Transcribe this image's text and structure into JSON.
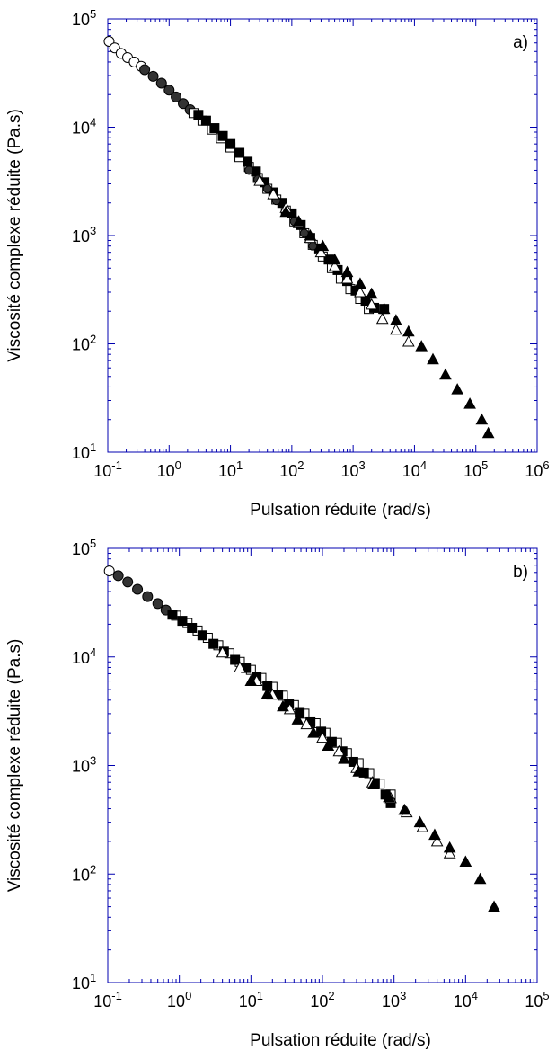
{
  "chart_data": [
    {
      "type": "scatter",
      "panel_label": "a)",
      "xlabel": "Pulsation réduite (rad/s)",
      "ylabel": "Viscosité complexe réduite (Pa.s)",
      "xscale": "log",
      "yscale": "log",
      "xlim": [
        0.1,
        1000000
      ],
      "ylim": [
        10,
        100000
      ],
      "x_ticks": [
        {
          "base": "10",
          "exp": "-1"
        },
        {
          "base": "10",
          "exp": "0"
        },
        {
          "base": "10",
          "exp": "1"
        },
        {
          "base": "10",
          "exp": "2"
        },
        {
          "base": "10",
          "exp": "3"
        },
        {
          "base": "10",
          "exp": "4"
        },
        {
          "base": "10",
          "exp": "5"
        },
        {
          "base": "10",
          "exp": "6"
        }
      ],
      "y_ticks": [
        {
          "base": "10",
          "exp": "1"
        },
        {
          "base": "10",
          "exp": "2"
        },
        {
          "base": "10",
          "exp": "3"
        },
        {
          "base": "10",
          "exp": "4"
        },
        {
          "base": "10",
          "exp": "5"
        }
      ],
      "grid": false,
      "legend": "none",
      "series": [
        {
          "marker": "circle-open",
          "x": [
            0.105,
            0.13,
            0.165,
            0.21,
            0.27,
            0.35
          ],
          "y": [
            62000,
            54000,
            48000,
            44000,
            40000,
            36500
          ]
        },
        {
          "marker": "circle-filled",
          "x": [
            0.4,
            0.55,
            0.75,
            1.0,
            1.3,
            1.7,
            2.2
          ],
          "y": [
            34000,
            29500,
            25500,
            22000,
            19000,
            16500,
            14500
          ]
        },
        {
          "marker": "square-open",
          "x": [
            2.5,
            3.5,
            5,
            7,
            10,
            14,
            20,
            28,
            40,
            56,
            80,
            110,
            160,
            220,
            320,
            450,
            630,
            900,
            1300,
            1800
          ],
          "y": [
            13500,
            11500,
            9500,
            7900,
            6500,
            5300,
            4300,
            3400,
            2700,
            2150,
            1700,
            1350,
            1050,
            820,
            640,
            500,
            400,
            320,
            260,
            210
          ]
        },
        {
          "marker": "square-filled",
          "x": [
            3,
            4,
            5.5,
            7.5,
            10,
            14,
            19,
            26,
            36,
            50,
            70,
            100,
            140,
            200,
            280,
            400,
            560,
            800,
            1100,
            1600,
            2200,
            3200
          ],
          "y": [
            13000,
            11500,
            9800,
            8300,
            7000,
            5800,
            4800,
            3900,
            3100,
            2500,
            2000,
            1600,
            1250,
            950,
            760,
            600,
            480,
            380,
            310,
            250,
            215,
            210
          ]
        },
        {
          "marker": "circle-filled-small",
          "x": [
            20,
            28,
            40,
            56,
            80,
            110,
            160,
            220
          ],
          "y": [
            4000,
            3300,
            2700,
            2100,
            1650,
            1350,
            1050,
            800
          ]
        },
        {
          "marker": "triangle-open",
          "x": [
            30,
            50,
            80,
            130,
            200,
            300,
            500,
            800,
            1300,
            2000,
            3000,
            5000,
            8000
          ],
          "y": [
            3200,
            2400,
            1800,
            1300,
            950,
            700,
            520,
            400,
            300,
            230,
            170,
            135,
            105
          ]
        },
        {
          "marker": "triangle-filled",
          "x": [
            80,
            130,
            200,
            320,
            500,
            800,
            1300,
            2000,
            3200,
            5000,
            8000,
            13000,
            20000,
            32000,
            50000,
            80000,
            125000,
            160000
          ],
          "y": [
            1650,
            1350,
            1000,
            800,
            600,
            460,
            360,
            290,
            210,
            165,
            130,
            95,
            72,
            52,
            38,
            28,
            20,
            15
          ]
        }
      ]
    },
    {
      "type": "scatter",
      "panel_label": "b)",
      "xlabel": "Pulsation réduite (rad/s)",
      "ylabel": "Viscosité complexe réduite (Pa.s)",
      "xscale": "log",
      "yscale": "log",
      "xlim": [
        0.1,
        100000
      ],
      "ylim": [
        10,
        100000
      ],
      "x_ticks": [
        {
          "base": "10",
          "exp": "-1"
        },
        {
          "base": "10",
          "exp": "0"
        },
        {
          "base": "10",
          "exp": "1"
        },
        {
          "base": "10",
          "exp": "2"
        },
        {
          "base": "10",
          "exp": "3"
        },
        {
          "base": "10",
          "exp": "4"
        },
        {
          "base": "10",
          "exp": "5"
        }
      ],
      "y_ticks": [
        {
          "base": "10",
          "exp": "1"
        },
        {
          "base": "10",
          "exp": "2"
        },
        {
          "base": "10",
          "exp": "3"
        },
        {
          "base": "10",
          "exp": "4"
        },
        {
          "base": "10",
          "exp": "5"
        }
      ],
      "grid": false,
      "legend": "none",
      "series": [
        {
          "marker": "circle-open",
          "x": [
            0.105
          ],
          "y": [
            62000
          ]
        },
        {
          "marker": "circle-filled",
          "x": [
            0.14,
            0.19,
            0.26,
            0.36,
            0.5,
            0.65
          ],
          "y": [
            56000,
            49000,
            42000,
            36000,
            31000,
            27000
          ]
        },
        {
          "marker": "square-open",
          "x": [
            0.9,
            1.3,
            1.8,
            2.5,
            3.5,
            5,
            7,
            10,
            14,
            20,
            28,
            40,
            56,
            80,
            110,
            160,
            220,
            320,
            450,
            630,
            900
          ],
          "y": [
            24000,
            20500,
            17500,
            15000,
            12800,
            10800,
            9000,
            7600,
            6400,
            5300,
            4400,
            3600,
            3000,
            2450,
            2000,
            1620,
            1300,
            1050,
            850,
            680,
            540
          ]
        },
        {
          "marker": "square-filled",
          "x": [
            0.8,
            1.1,
            1.5,
            2.1,
            3,
            4.2,
            6,
            8.5,
            12,
            17,
            24,
            34,
            48,
            68,
            96,
            135,
            190,
            270,
            380,
            540,
            760,
            900
          ],
          "y": [
            24500,
            21500,
            18500,
            15800,
            13200,
            11200,
            9400,
            7900,
            6500,
            5400,
            4500,
            3700,
            3050,
            2500,
            2050,
            1650,
            1350,
            1080,
            860,
            690,
            540,
            450
          ]
        },
        {
          "marker": "triangle-open",
          "x": [
            4,
            7,
            12,
            20,
            35,
            60,
            100,
            170,
            300,
            500,
            900,
            1500,
            2500,
            4000,
            6000
          ],
          "y": [
            11000,
            8000,
            6000,
            4500,
            3300,
            2400,
            1800,
            1350,
            950,
            700,
            500,
            370,
            270,
            200,
            155
          ]
        },
        {
          "marker": "triangle-filled",
          "x": [
            10,
            17,
            28,
            45,
            75,
            120,
            200,
            320,
            520,
            850,
            1400,
            2300,
            3700,
            6000,
            10000,
            16000,
            25000
          ],
          "y": [
            6000,
            4600,
            3500,
            2650,
            2000,
            1520,
            1150,
            880,
            670,
            510,
            390,
            300,
            230,
            175,
            130,
            90,
            50
          ]
        }
      ]
    }
  ]
}
